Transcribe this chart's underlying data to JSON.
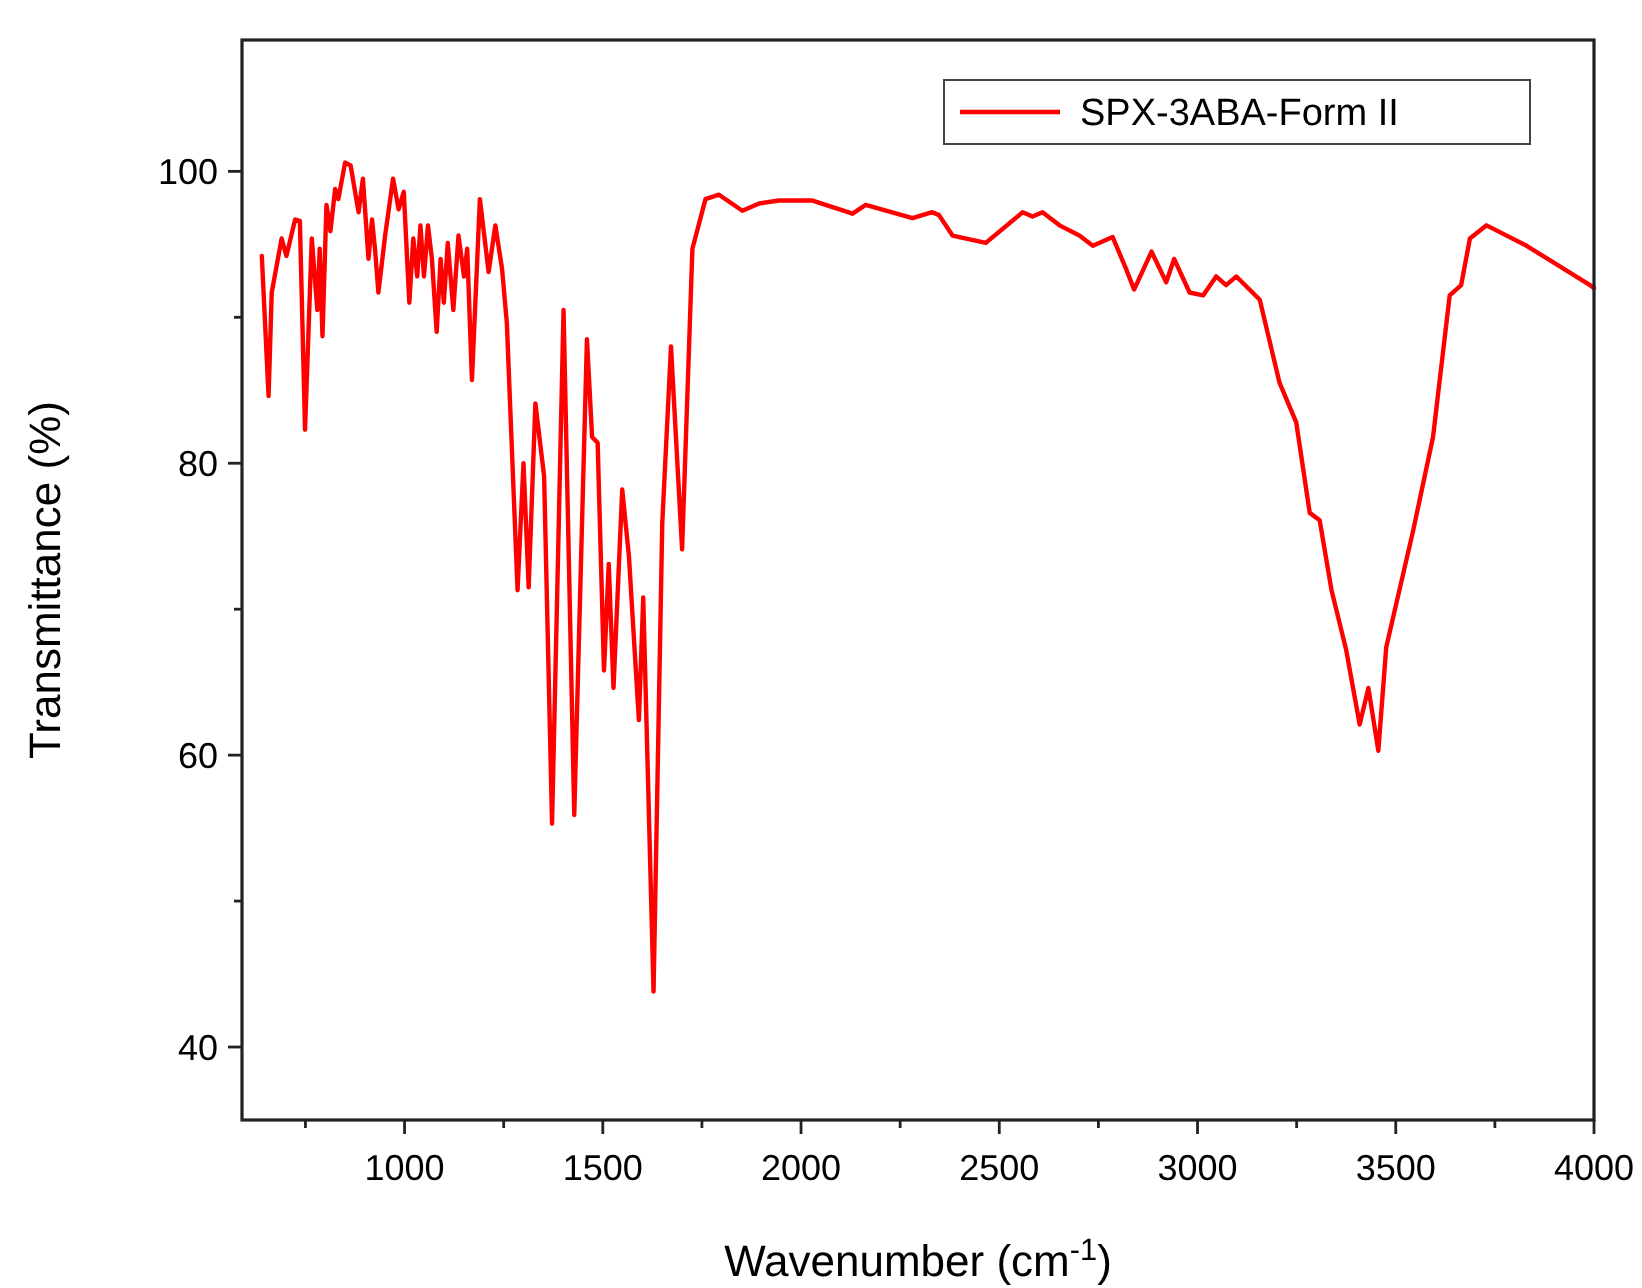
{
  "chart_data": {
    "type": "line",
    "xlabel": "Wavenumber (cm$^{-1}$)",
    "ylabel": "Transmittance (%)",
    "xlim": [
      590,
      4000
    ],
    "ylim": [
      35,
      109
    ],
    "xticks": [
      {
        "value": 750,
        "label": null
      },
      1000,
      {
        "value": 1250,
        "label": null
      },
      1500,
      {
        "value": 1750,
        "label": null
      },
      2000,
      {
        "value": 2250,
        "label": null
      },
      2500,
      {
        "value": 2750,
        "label": null
      },
      3000,
      {
        "value": 3250,
        "label": null
      },
      3500,
      {
        "value": 3750,
        "label": null
      },
      4000
    ],
    "yticks": [
      40,
      {
        "value": 50,
        "label": null
      },
      60,
      {
        "value": 70,
        "label": null
      },
      80,
      {
        "value": 90,
        "label": null
      },
      100
    ],
    "grid": false,
    "legend": "top right",
    "marker": "none",
    "line_style": "solid",
    "series": [
      {
        "name": "SPX-3ABA-Form II",
        "color": "#ff0000",
        "x": [
          640,
          657,
          665,
          690,
          702,
          724,
          736,
          749,
          766,
          780,
          786,
          793,
          803,
          813,
          825,
          833,
          850,
          864,
          884,
          895,
          909,
          918,
          926,
          934,
          951,
          971,
          985,
          998,
          1012,
          1022,
          1032,
          1040,
          1049,
          1059,
          1069,
          1081,
          1091,
          1099,
          1109,
          1123,
          1136,
          1150,
          1158,
          1170,
          1190,
          1212,
          1229,
          1246,
          1258,
          1285,
          1300,
          1313,
          1330,
          1352,
          1372,
          1401,
          1428,
          1460,
          1473,
          1487,
          1503,
          1515,
          1527,
          1549,
          1566,
          1591,
          1602,
          1628,
          1650,
          1672,
          1700,
          1726,
          1759,
          1793,
          1852,
          1894,
          1944,
          2029,
          2130,
          2163,
          2281,
          2331,
          2348,
          2382,
          2466,
          2559,
          2584,
          2609,
          2652,
          2702,
          2736,
          2786,
          2820,
          2840,
          2884,
          2921,
          2941,
          2980,
          3014,
          3047,
          3072,
          3098,
          3157,
          3207,
          3249,
          3283,
          3308,
          3338,
          3375,
          3409,
          3431,
          3456,
          3476,
          3544,
          3594,
          3636,
          3665,
          3687,
          3729,
          3830,
          3990,
          4000
        ],
        "values": [
          94.2,
          84.6,
          91.7,
          95.4,
          94.2,
          96.7,
          96.6,
          82.3,
          95.4,
          90.5,
          94.7,
          88.7,
          97.7,
          95.9,
          98.8,
          98.1,
          100.6,
          100.4,
          97.2,
          99.5,
          94,
          96.7,
          94.5,
          91.7,
          95.6,
          99.5,
          97.4,
          98.6,
          91,
          95.4,
          92.8,
          96.3,
          92.8,
          96.3,
          94,
          89,
          94,
          91,
          95.1,
          90.5,
          95.6,
          92.8,
          94.7,
          85.7,
          98.1,
          93.1,
          96.3,
          93.3,
          89.6,
          71.3,
          80,
          71.5,
          84.1,
          79.1,
          55.3,
          90.5,
          55.9,
          88.5,
          81.8,
          81.4,
          65.8,
          73.1,
          64.6,
          78.2,
          73.6,
          62.4,
          70.8,
          43.8,
          75.9,
          88,
          74.1,
          94.7,
          98.1,
          98.4,
          97.3,
          97.8,
          98,
          98,
          97.1,
          97.7,
          96.8,
          97.2,
          97,
          95.6,
          95.1,
          97.2,
          96.9,
          97.2,
          96.3,
          95.6,
          94.9,
          95.5,
          93.3,
          91.9,
          94.5,
          92.4,
          94,
          91.7,
          91.5,
          92.8,
          92.2,
          92.8,
          91.2,
          85.5,
          82.8,
          76.6,
          76.1,
          71.3,
          67.2,
          62.1,
          64.6,
          60.3,
          67.4,
          75.4,
          81.8,
          91.5,
          92.2,
          95.4,
          96.3,
          94.9,
          92.2,
          92
        ]
      }
    ]
  }
}
